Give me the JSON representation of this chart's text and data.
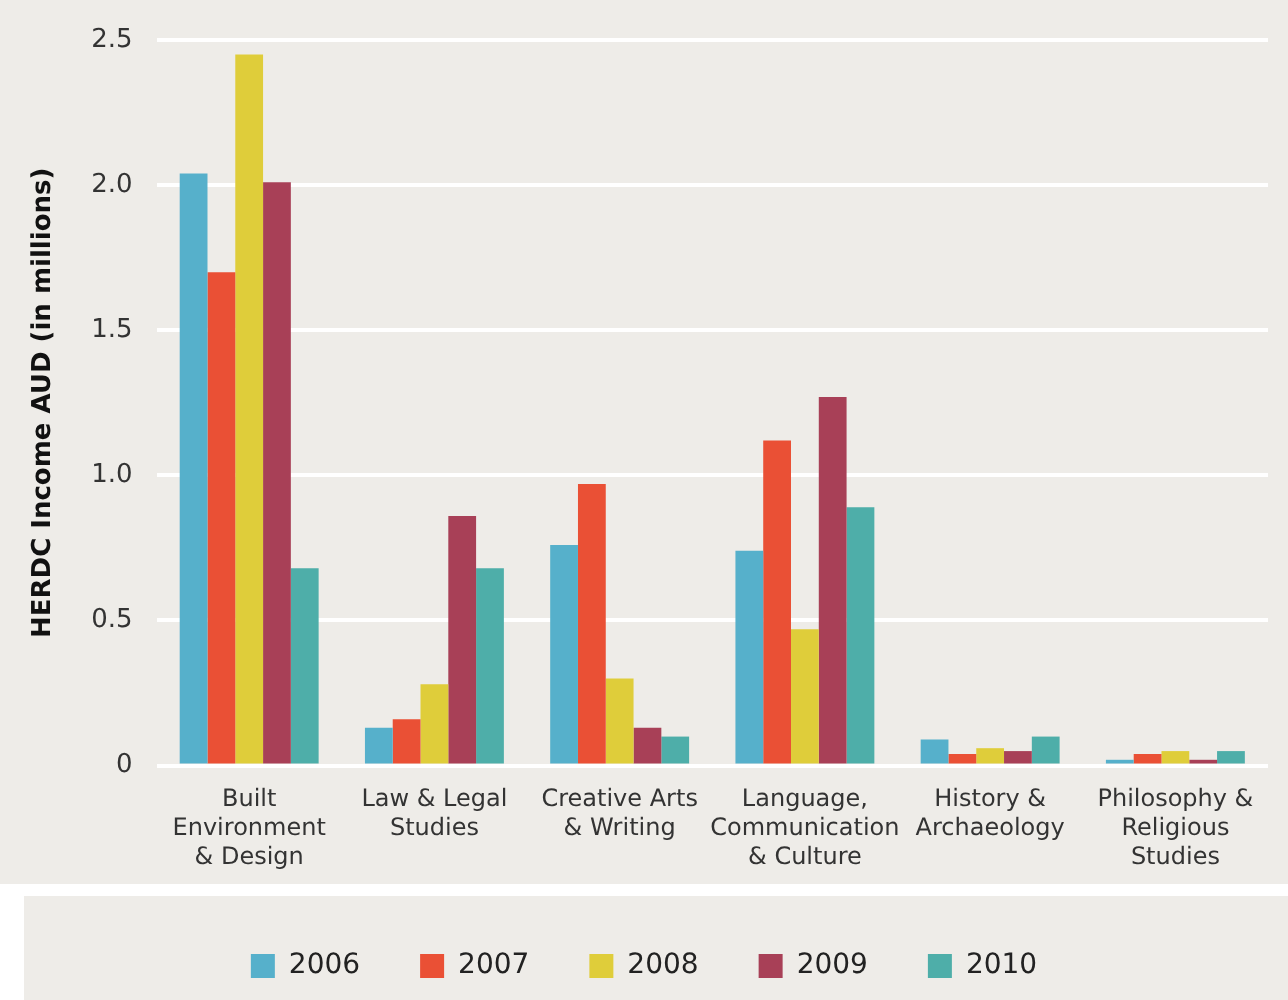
{
  "chart_data": {
    "type": "bar",
    "ylabel": "HERDC Income AUD (in millions)",
    "categories": [
      "Built Environment & Design",
      "Law & Legal Studies",
      "Creative Arts & Writing",
      "Language, Communication & Culture",
      "History & Archaeology",
      "Philosophy & Religious Studies"
    ],
    "series": [
      {
        "name": "2006",
        "color": "#56b0cb",
        "values": [
          2.04,
          0.13,
          0.76,
          0.74,
          0.09,
          0.02
        ]
      },
      {
        "name": "2007",
        "color": "#ea5035",
        "values": [
          1.7,
          0.16,
          0.97,
          1.12,
          0.04,
          0.04
        ]
      },
      {
        "name": "2008",
        "color": "#dfcd3a",
        "values": [
          2.45,
          0.28,
          0.3,
          0.47,
          0.06,
          0.05
        ]
      },
      {
        "name": "2009",
        "color": "#a84057",
        "values": [
          2.01,
          0.86,
          0.13,
          1.27,
          0.05,
          0.02
        ]
      },
      {
        "name": "2010",
        "color": "#4eaea9",
        "values": [
          0.68,
          0.68,
          0.1,
          0.89,
          0.1,
          0.05
        ]
      }
    ],
    "ylim": [
      0,
      2.5
    ],
    "yticks": [
      0,
      0.5,
      {
        "value": 1,
        "label": "1.0"
      },
      {
        "value": 1.5,
        "label": "1.5"
      },
      {
        "value": 2,
        "label": "2.0"
      },
      2.5
    ],
    "grid": "y",
    "legend": "bottom"
  }
}
